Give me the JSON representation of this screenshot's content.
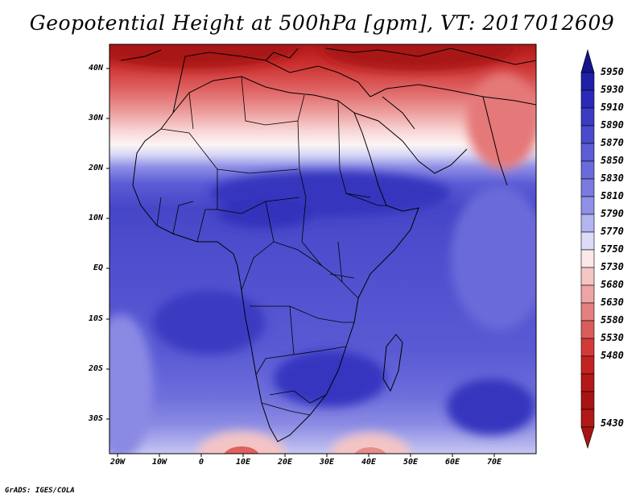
{
  "title": "Geopotential Height at 500hPa [gpm], VT: 2017012609",
  "credit": "GrADS: IGES/COLA",
  "lat_labels": [
    "40N",
    "30N",
    "20N",
    "10N",
    "EQ",
    "10S",
    "20S",
    "30S"
  ],
  "lon_labels": [
    "20W",
    "10W",
    "0",
    "10E",
    "20E",
    "30E",
    "40E",
    "50E",
    "60E",
    "70E"
  ],
  "colorbar": {
    "levels": [
      "5950",
      "5930",
      "5910",
      "5890",
      "5870",
      "5850",
      "5830",
      "5810",
      "5790",
      "5770",
      "5750",
      "5730",
      "5680",
      "5630",
      "5580",
      "5530",
      "5480",
      "5430"
    ],
    "colors": [
      "#14148c",
      "#1f1fa8",
      "#2a2ab8",
      "#3b3bc3",
      "#4a4acd",
      "#5c5cd6",
      "#7373dd",
      "#9090e6",
      "#b4b4ef",
      "#dcdcf8",
      "#fbe5e5",
      "#f5c6c6",
      "#eea4a4",
      "#e58080",
      "#dc5c5c",
      "#d23a3a",
      "#c42222",
      "#a81414"
    ]
  },
  "map": {
    "region": "Africa",
    "lon_range": [
      -22,
      80
    ],
    "lat_range": [
      -37,
      45
    ]
  }
}
